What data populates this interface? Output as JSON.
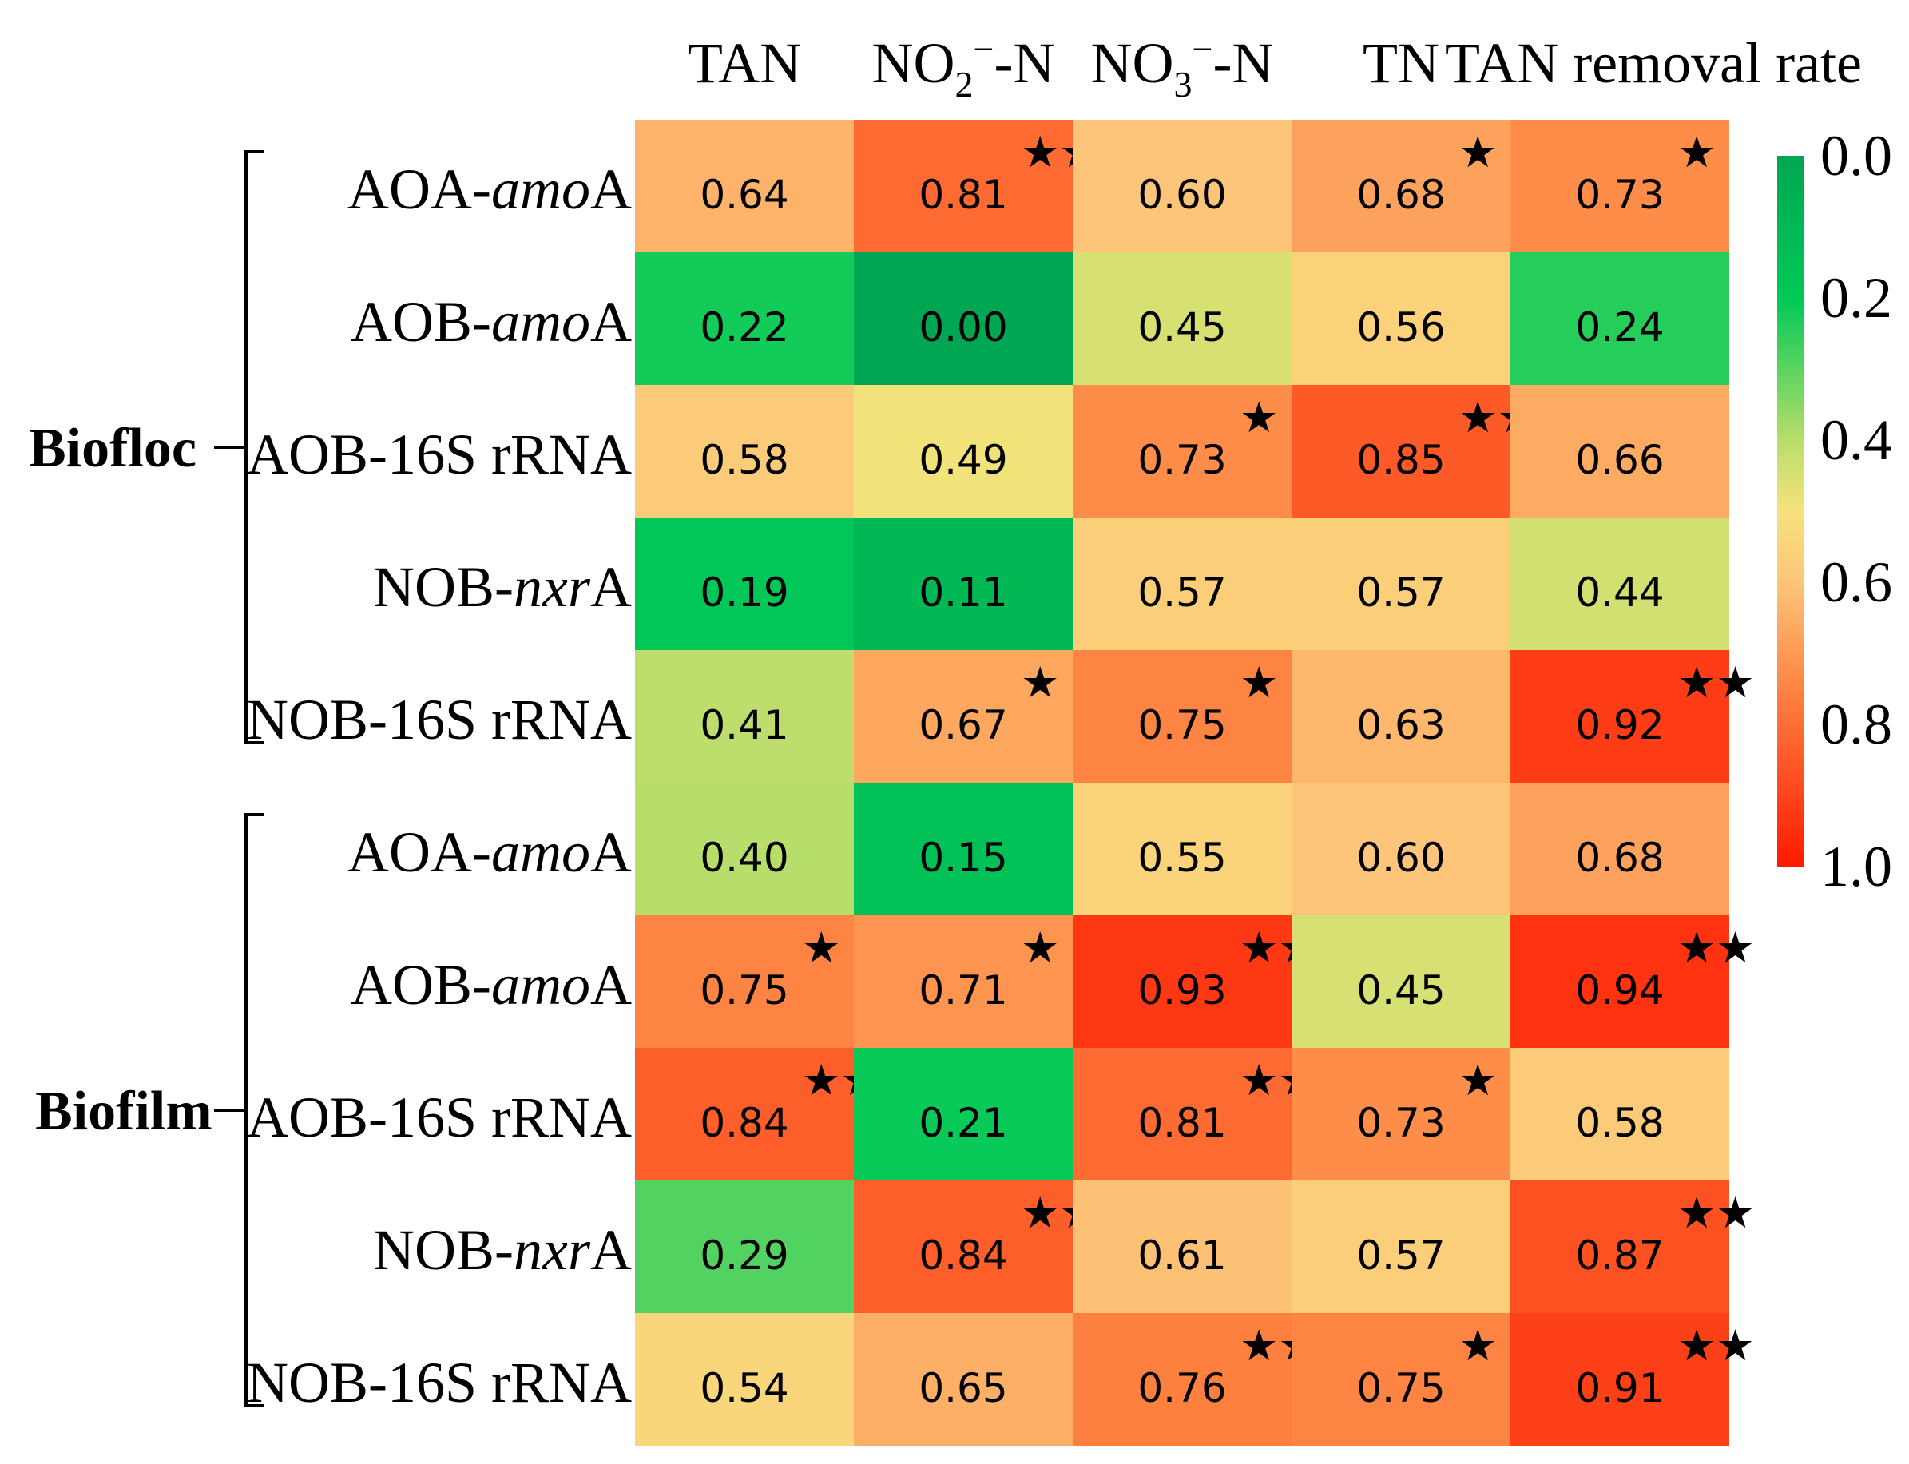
{
  "chart_data": {
    "type": "heatmap",
    "columns": [
      "TAN",
      "NO2−-N",
      "NO3−-N",
      "TN",
      "TAN removal rate"
    ],
    "column_labels": [
      {
        "main": "TAN"
      },
      {
        "main": "NO",
        "sub": "2",
        "sup": "−",
        "tail": "-N"
      },
      {
        "main": "NO",
        "sub": "3",
        "sup": "−",
        "tail": "-N"
      },
      {
        "main": "TN"
      },
      {
        "main": "TAN removal rate"
      }
    ],
    "groups": [
      {
        "name": "Biofloc",
        "rows": [
          {
            "label_pre": "AOA-",
            "label_it": "amo",
            "label_post": "A",
            "values": [
              0.64,
              0.81,
              0.6,
              0.68,
              0.73
            ],
            "stars": [
              "",
              "★★",
              "",
              "★",
              "★"
            ]
          },
          {
            "label_pre": "AOB-",
            "label_it": "amo",
            "label_post": "A",
            "values": [
              0.22,
              0.0,
              0.45,
              0.56,
              0.24
            ],
            "stars": [
              "",
              "",
              "",
              "",
              ""
            ]
          },
          {
            "label_pre": "AOB-16S rRNA",
            "label_it": "",
            "label_post": "",
            "values": [
              0.58,
              0.49,
              0.73,
              0.85,
              0.66
            ],
            "stars": [
              "",
              "",
              "★",
              "★★",
              ""
            ]
          },
          {
            "label_pre": "NOB-",
            "label_it": "nxr",
            "label_post": "A",
            "values": [
              0.19,
              0.11,
              0.57,
              0.57,
              0.44
            ],
            "stars": [
              "",
              "",
              "",
              "",
              ""
            ]
          },
          {
            "label_pre": "NOB-16S rRNA",
            "label_it": "",
            "label_post": "",
            "values": [
              0.41,
              0.67,
              0.75,
              0.63,
              0.92
            ],
            "stars": [
              "",
              "★",
              "★",
              "",
              "★★"
            ]
          }
        ]
      },
      {
        "name": "Biofilm",
        "rows": [
          {
            "label_pre": "AOA-",
            "label_it": "amo",
            "label_post": "A",
            "values": [
              0.4,
              0.15,
              0.55,
              0.6,
              0.68
            ],
            "stars": [
              "",
              "",
              "",
              "",
              ""
            ]
          },
          {
            "label_pre": "AOB-",
            "label_it": "amo",
            "label_post": "A",
            "values": [
              0.75,
              0.71,
              0.93,
              0.45,
              0.94
            ],
            "stars": [
              "★",
              "★",
              "★★",
              "",
              "★★"
            ]
          },
          {
            "label_pre": "AOB-16S rRNA",
            "label_it": "",
            "label_post": "",
            "values": [
              0.84,
              0.21,
              0.81,
              0.73,
              0.58
            ],
            "stars": [
              "★★",
              "",
              "★★",
              "★",
              ""
            ]
          },
          {
            "label_pre": "NOB-",
            "label_it": "nxr",
            "label_post": "A",
            "values": [
              0.29,
              0.84,
              0.61,
              0.57,
              0.87
            ],
            "stars": [
              "",
              "★★",
              "",
              "",
              "★★"
            ]
          },
          {
            "label_pre": "NOB-16S rRNA",
            "label_it": "",
            "label_post": "",
            "values": [
              0.54,
              0.65,
              0.76,
              0.75,
              0.91
            ],
            "stars": [
              "",
              "",
              "★★",
              "★",
              "★★"
            ]
          }
        ]
      }
    ],
    "colorbar": {
      "ticks": [
        "0.0",
        "0.2",
        "0.4",
        "0.6",
        "0.8",
        "1.0"
      ],
      "range": [
        0,
        1
      ],
      "stops": [
        {
          "v": 0.0,
          "color": "#00a651"
        },
        {
          "v": 0.2,
          "color": "#00c957"
        },
        {
          "v": 0.4,
          "color": "#b7de6a"
        },
        {
          "v": 0.5,
          "color": "#f7e27c"
        },
        {
          "v": 0.6,
          "color": "#fdc579"
        },
        {
          "v": 0.75,
          "color": "#fd8442"
        },
        {
          "v": 1.0,
          "color": "#ff1a00"
        }
      ]
    }
  }
}
